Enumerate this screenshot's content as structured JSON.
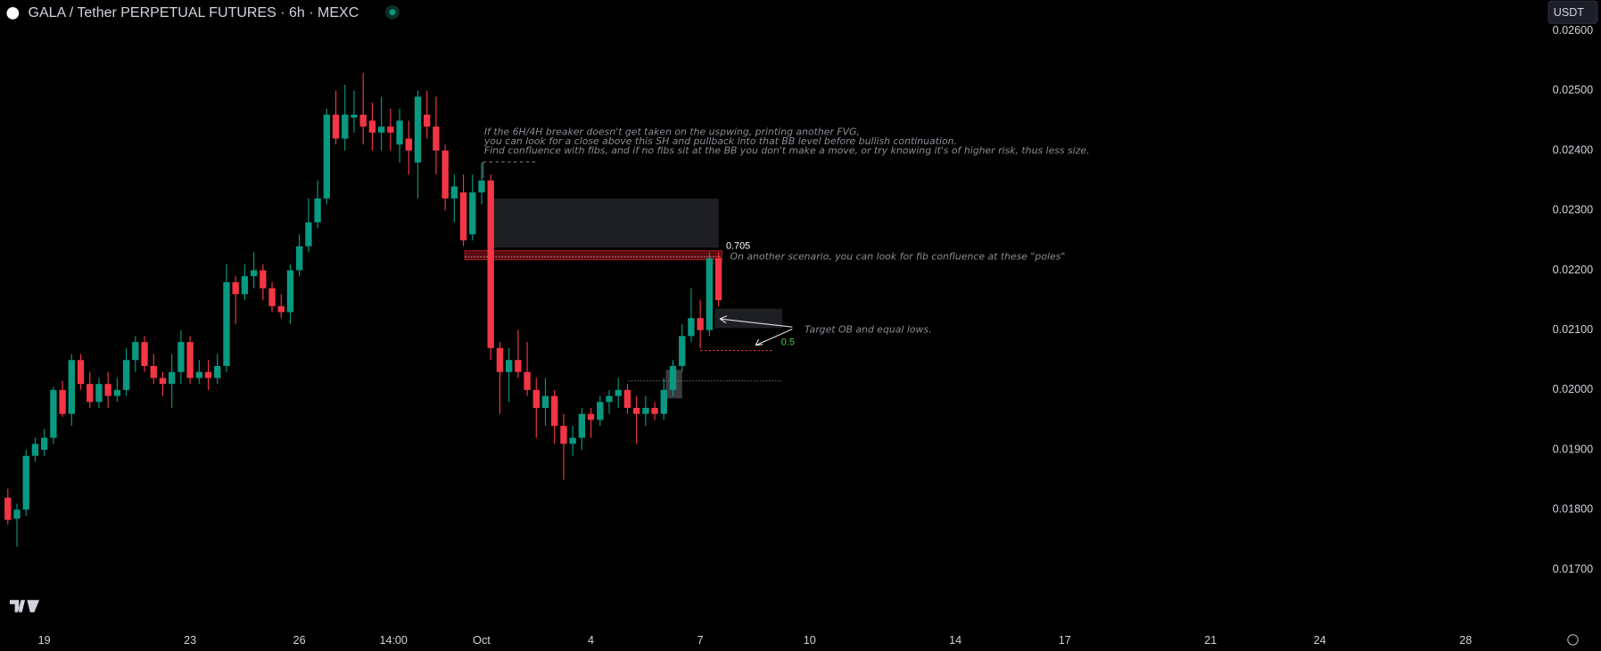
{
  "chart_data": {
    "type": "candlestick",
    "title": "GALA / Tether PERPETUAL FUTURES · 6h · MEXC",
    "currency": "USDT",
    "up_color": "#089981",
    "down_color": "#f23645",
    "open": [
      0.0182,
      0.01785,
      0.018,
      0.0189,
      0.019,
      0.0192,
      0.02,
      0.0196,
      0.0205,
      0.0201,
      0.0198,
      0.0201,
      0.0199,
      0.02,
      0.0205,
      0.0208,
      0.0204,
      0.0202,
      0.0201,
      0.0203,
      0.0208,
      0.0202,
      0.0203,
      0.0202,
      0.0204,
      0.0218,
      0.0216,
      0.0219,
      0.022,
      0.0217,
      0.0214,
      0.0213,
      0.022,
      0.0224,
      0.0228,
      0.0232,
      0.0246,
      0.0242,
      0.02455,
      0.0246,
      0.0245,
      0.0243,
      0.0244,
      0.0241,
      0.0242,
      0.0238,
      0.0246,
      0.0244,
      0.024,
      0.0232,
      0.0233,
      0.0226,
      0.0233,
      0.0235,
      0.0207,
      0.0203,
      0.0205,
      0.0203,
      0.02,
      0.0197,
      0.0199,
      0.0194,
      0.0191,
      0.0192,
      0.0196,
      0.0195,
      0.0198,
      0.0199,
      0.02,
      0.0197,
      0.0196,
      0.0197,
      0.0196,
      0.02,
      0.0204,
      0.0209,
      0.0212,
      0.021,
      0.0222
    ],
    "high": [
      0.01835,
      0.0181,
      0.019,
      0.0192,
      0.01935,
      0.02005,
      0.02015,
      0.0206,
      0.0206,
      0.0203,
      0.0202,
      0.0203,
      0.0202,
      0.0207,
      0.0209,
      0.0209,
      0.0206,
      0.0203,
      0.0206,
      0.021,
      0.0209,
      0.0205,
      0.0205,
      0.0206,
      0.0221,
      0.0219,
      0.0221,
      0.0223,
      0.0221,
      0.0218,
      0.0216,
      0.0221,
      0.0226,
      0.0232,
      0.0235,
      0.0247,
      0.025,
      0.0251,
      0.025,
      0.0253,
      0.0248,
      0.0249,
      0.0247,
      0.0247,
      0.0245,
      0.025,
      0.025,
      0.0249,
      0.0241,
      0.0236,
      0.0236,
      0.0236,
      0.0238,
      0.0236,
      0.0208,
      0.0207,
      0.021,
      0.0208,
      0.0202,
      0.0202,
      0.02,
      0.0196,
      0.0194,
      0.0197,
      0.0197,
      0.0199,
      0.02,
      0.0202,
      0.0201,
      0.0199,
      0.0199,
      0.0198,
      0.0202,
      0.0205,
      0.0211,
      0.0217,
      0.0215,
      0.0223,
      0.0223
    ],
    "low": [
      0.01775,
      0.01738,
      0.0179,
      0.0188,
      0.0189,
      0.0191,
      0.01955,
      0.0194,
      0.02,
      0.0197,
      0.0197,
      0.0197,
      0.0198,
      0.0199,
      0.0203,
      0.0203,
      0.0201,
      0.0199,
      0.0197,
      0.0201,
      0.0201,
      0.0201,
      0.02,
      0.0201,
      0.0203,
      0.0211,
      0.0215,
      0.0217,
      0.0215,
      0.0213,
      0.0212,
      0.0211,
      0.0219,
      0.0223,
      0.0227,
      0.0231,
      0.0241,
      0.024,
      0.0243,
      0.0241,
      0.024,
      0.024,
      0.024,
      0.0238,
      0.0236,
      0.0232,
      0.0242,
      0.0236,
      0.023,
      0.0228,
      0.0224,
      0.0225,
      0.0231,
      0.0205,
      0.0196,
      0.0198,
      0.0202,
      0.0199,
      0.0192,
      0.0194,
      0.0191,
      0.0185,
      0.0189,
      0.019,
      0.0192,
      0.0194,
      0.0196,
      0.0197,
      0.0196,
      0.0191,
      0.0194,
      0.0195,
      0.0195,
      0.0199,
      0.0203,
      0.0208,
      0.0207,
      0.0209,
      0.0214
    ],
    "close": [
      0.01783,
      0.018,
      0.0189,
      0.0191,
      0.0192,
      0.02,
      0.0196,
      0.0205,
      0.0201,
      0.0198,
      0.0201,
      0.0199,
      0.02,
      0.0205,
      0.0208,
      0.0204,
      0.0202,
      0.0201,
      0.0203,
      0.0208,
      0.0202,
      0.0203,
      0.0202,
      0.0204,
      0.0218,
      0.0216,
      0.0219,
      0.022,
      0.0217,
      0.0214,
      0.0213,
      0.022,
      0.0224,
      0.0228,
      0.0232,
      0.0246,
      0.0242,
      0.0246,
      0.0246,
      0.0244,
      0.0243,
      0.0244,
      0.0243,
      0.0245,
      0.024,
      0.0249,
      0.0244,
      0.024,
      0.0232,
      0.0234,
      0.0225,
      0.0233,
      0.0235,
      0.0207,
      0.0203,
      0.0205,
      0.0203,
      0.02,
      0.0197,
      0.0199,
      0.0194,
      0.0191,
      0.0192,
      0.0196,
      0.0195,
      0.0198,
      0.0199,
      0.02,
      0.0197,
      0.0196,
      0.0197,
      0.0196,
      0.02,
      0.0204,
      0.0209,
      0.0212,
      0.021,
      0.0222,
      0.0215
    ],
    "xlim": [
      -0.8,
      168.3
    ],
    "xticks": [
      {
        "value": 4,
        "label": "19"
      },
      {
        "value": 20,
        "label": "23"
      },
      {
        "value": 32,
        "label": "26"
      },
      {
        "value": 42.33,
        "label": "14:00"
      },
      {
        "value": 52,
        "label": "Oct"
      },
      {
        "value": 64,
        "label": "4"
      },
      {
        "value": 76,
        "label": "7"
      },
      {
        "value": 88,
        "label": "10"
      },
      {
        "value": 104,
        "label": "14"
      },
      {
        "value": 116,
        "label": "17"
      },
      {
        "value": 132,
        "label": "21"
      },
      {
        "value": 144,
        "label": "24"
      },
      {
        "value": 160,
        "label": "28"
      }
    ],
    "ylim": [
      0.016047,
      0.026515
    ],
    "yticks": [
      {
        "value": 0.017,
        "label": "0.01700"
      },
      {
        "value": 0.018,
        "label": "0.01800"
      },
      {
        "value": 0.019,
        "label": "0.01900"
      },
      {
        "value": 0.02,
        "label": "0.02000"
      },
      {
        "value": 0.021,
        "label": "0.02100"
      },
      {
        "value": 0.022,
        "label": "0.02200"
      },
      {
        "value": 0.023,
        "label": "0.02300"
      },
      {
        "value": 0.024,
        "label": "0.02400"
      },
      {
        "value": 0.025,
        "label": "0.02500"
      },
      {
        "value": 0.026,
        "label": "0.02600"
      }
    ],
    "annotations": [
      "If the 6H/4H breaker doesn't get taken on the uspwing, printing another FVG,",
      "you can look for a close above this SH and pullback into that BB level before bullish continuation.",
      "Find confluence with fibs, and if no fibs sit at the BB you don't make a move, or try knowing it's of higher risk, thus less size."
    ],
    "fib_high_label": "0.705",
    "fib_mid_label": "0.5",
    "poles_note": "On another scenario, you can look for fib confluence at these \"poles\"",
    "target_note": "Target OB and equal lows."
  }
}
